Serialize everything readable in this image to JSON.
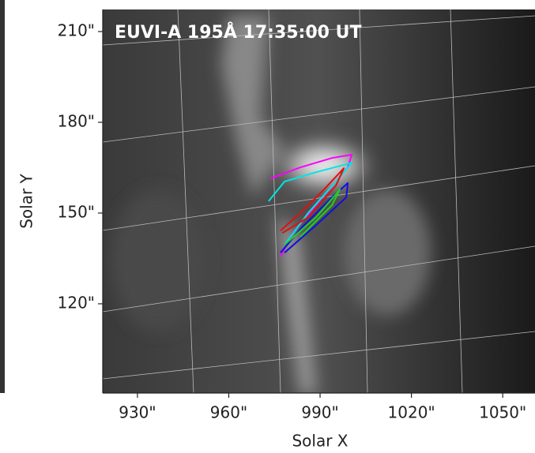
{
  "chart_data": {
    "type": "line",
    "title": "EUVI-A 195Å 17:35:00 UT",
    "x_label": "Solar X",
    "y_label": "Solar Y",
    "xlim": [
      918.6,
      1060.6
    ],
    "ylim": [
      90.5,
      217.3
    ],
    "xticks": [
      {
        "value": 930,
        "label": "930\""
      },
      {
        "value": 960,
        "label": "960\""
      },
      {
        "value": 990,
        "label": "990\""
      },
      {
        "value": 1020,
        "label": "1020\""
      },
      {
        "value": 1050,
        "label": "1050\""
      }
    ],
    "yticks": [
      {
        "value": 120,
        "label": "120\""
      },
      {
        "value": 150,
        "label": "150\""
      },
      {
        "value": 180,
        "label": "180\""
      },
      {
        "value": 210,
        "label": "210\""
      }
    ],
    "series": [
      {
        "color": "#ff00ff",
        "x": [
          973.7,
          983.5,
          993.9,
          1000.4,
          999.1,
          988.7,
          981.0,
          977.0
        ],
        "values": [
          161.4,
          165.1,
          168.2,
          169.3,
          165.1,
          152.6,
          143.4,
          135.6
        ]
      },
      {
        "color": "#00e5e5",
        "x": [
          973.1,
          978.3,
          988.7,
          1000.4,
          995.2,
          986.1,
          978.3
        ],
        "values": [
          153.9,
          160.4,
          163.5,
          166.6,
          160.4,
          150.0,
          139.5
        ]
      },
      {
        "color": "#e01010",
        "x": [
          977.0,
          983.5,
          991.3,
          997.8,
          995.2,
          986.1,
          977.6
        ],
        "values": [
          144.2,
          150.0,
          157.8,
          164.8,
          159.1,
          148.6,
          143.4
        ]
      },
      {
        "color": "#1010e0",
        "x": [
          977.0,
          983.5,
          993.9,
          999.1,
          998.6,
          988.7,
          978.3
        ],
        "values": [
          136.9,
          144.7,
          155.2,
          159.9,
          155.2,
          146.0,
          136.9
        ]
      },
      {
        "color": "#20d020",
        "x": [
          978.3,
          988.7,
          996.5,
          993.9,
          983.5
        ],
        "values": [
          139.5,
          148.6,
          157.8,
          152.6,
          142.1
        ]
      }
    ]
  }
}
